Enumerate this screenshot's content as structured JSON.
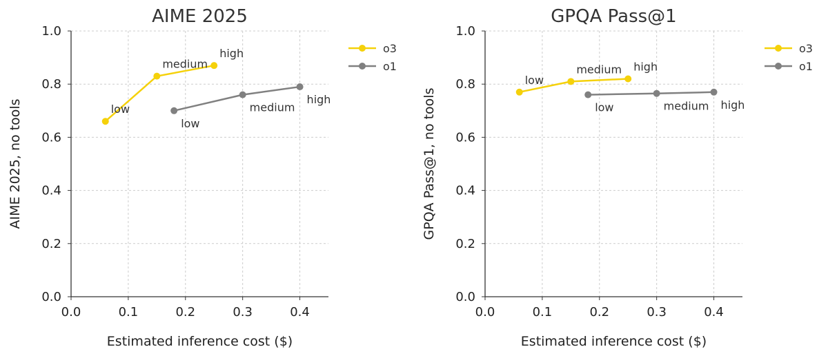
{
  "chart_data": [
    {
      "type": "line",
      "title": "AIME 2025",
      "xlabel": "Estimated inference cost ($)",
      "ylabel": "AIME 2025, no tools",
      "xlim": [
        0,
        0.45
      ],
      "ylim": [
        0,
        1.0
      ],
      "xticks": [
        0.0,
        0.1,
        0.2,
        0.3,
        0.4
      ],
      "xtick_labels": [
        "0.0",
        "0.1",
        "0.2",
        "0.3",
        "0.4"
      ],
      "yticks": [
        0.0,
        0.2,
        0.4,
        0.6,
        0.8,
        1.0
      ],
      "ytick_labels": [
        "0.0",
        "0.2",
        "0.4",
        "0.6",
        "0.8",
        "1.0"
      ],
      "grid": true,
      "legend_position": "outside-top-right",
      "series": [
        {
          "name": "o3",
          "color": "#f5d10a",
          "x": [
            0.06,
            0.15,
            0.25
          ],
          "y": [
            0.66,
            0.83,
            0.87
          ],
          "labels": [
            "low",
            "medium",
            "high"
          ],
          "label_pos": [
            "above-right",
            "above-right",
            "above-right"
          ]
        },
        {
          "name": "o1",
          "color": "#808080",
          "x": [
            0.18,
            0.3,
            0.4
          ],
          "y": [
            0.7,
            0.76,
            0.79
          ],
          "labels": [
            "low",
            "medium",
            "high"
          ],
          "label_pos": [
            "below-right",
            "below-right",
            "below-right"
          ]
        }
      ]
    },
    {
      "type": "line",
      "title": "GPQA Pass@1",
      "xlabel": "Estimated inference cost ($)",
      "ylabel": "GPQA Pass@1, no tools",
      "xlim": [
        0,
        0.45
      ],
      "ylim": [
        0,
        1.0
      ],
      "xticks": [
        0.0,
        0.1,
        0.2,
        0.3,
        0.4
      ],
      "xtick_labels": [
        "0.0",
        "0.1",
        "0.2",
        "0.3",
        "0.4"
      ],
      "yticks": [
        0.0,
        0.2,
        0.4,
        0.6,
        0.8,
        1.0
      ],
      "ytick_labels": [
        "0.0",
        "0.2",
        "0.4",
        "0.6",
        "0.8",
        "1.0"
      ],
      "grid": true,
      "legend_position": "outside-top-right",
      "series": [
        {
          "name": "o3",
          "color": "#f5d10a",
          "x": [
            0.06,
            0.15,
            0.25
          ],
          "y": [
            0.77,
            0.81,
            0.82
          ],
          "labels": [
            "low",
            "medium",
            "high"
          ],
          "label_pos": [
            "above-right",
            "above-right",
            "above-right"
          ]
        },
        {
          "name": "o1",
          "color": "#808080",
          "x": [
            0.18,
            0.3,
            0.4
          ],
          "y": [
            0.76,
            0.765,
            0.77
          ],
          "labels": [
            "low",
            "medium",
            "high"
          ],
          "label_pos": [
            "below-right",
            "below-right",
            "below-right"
          ]
        }
      ]
    }
  ]
}
